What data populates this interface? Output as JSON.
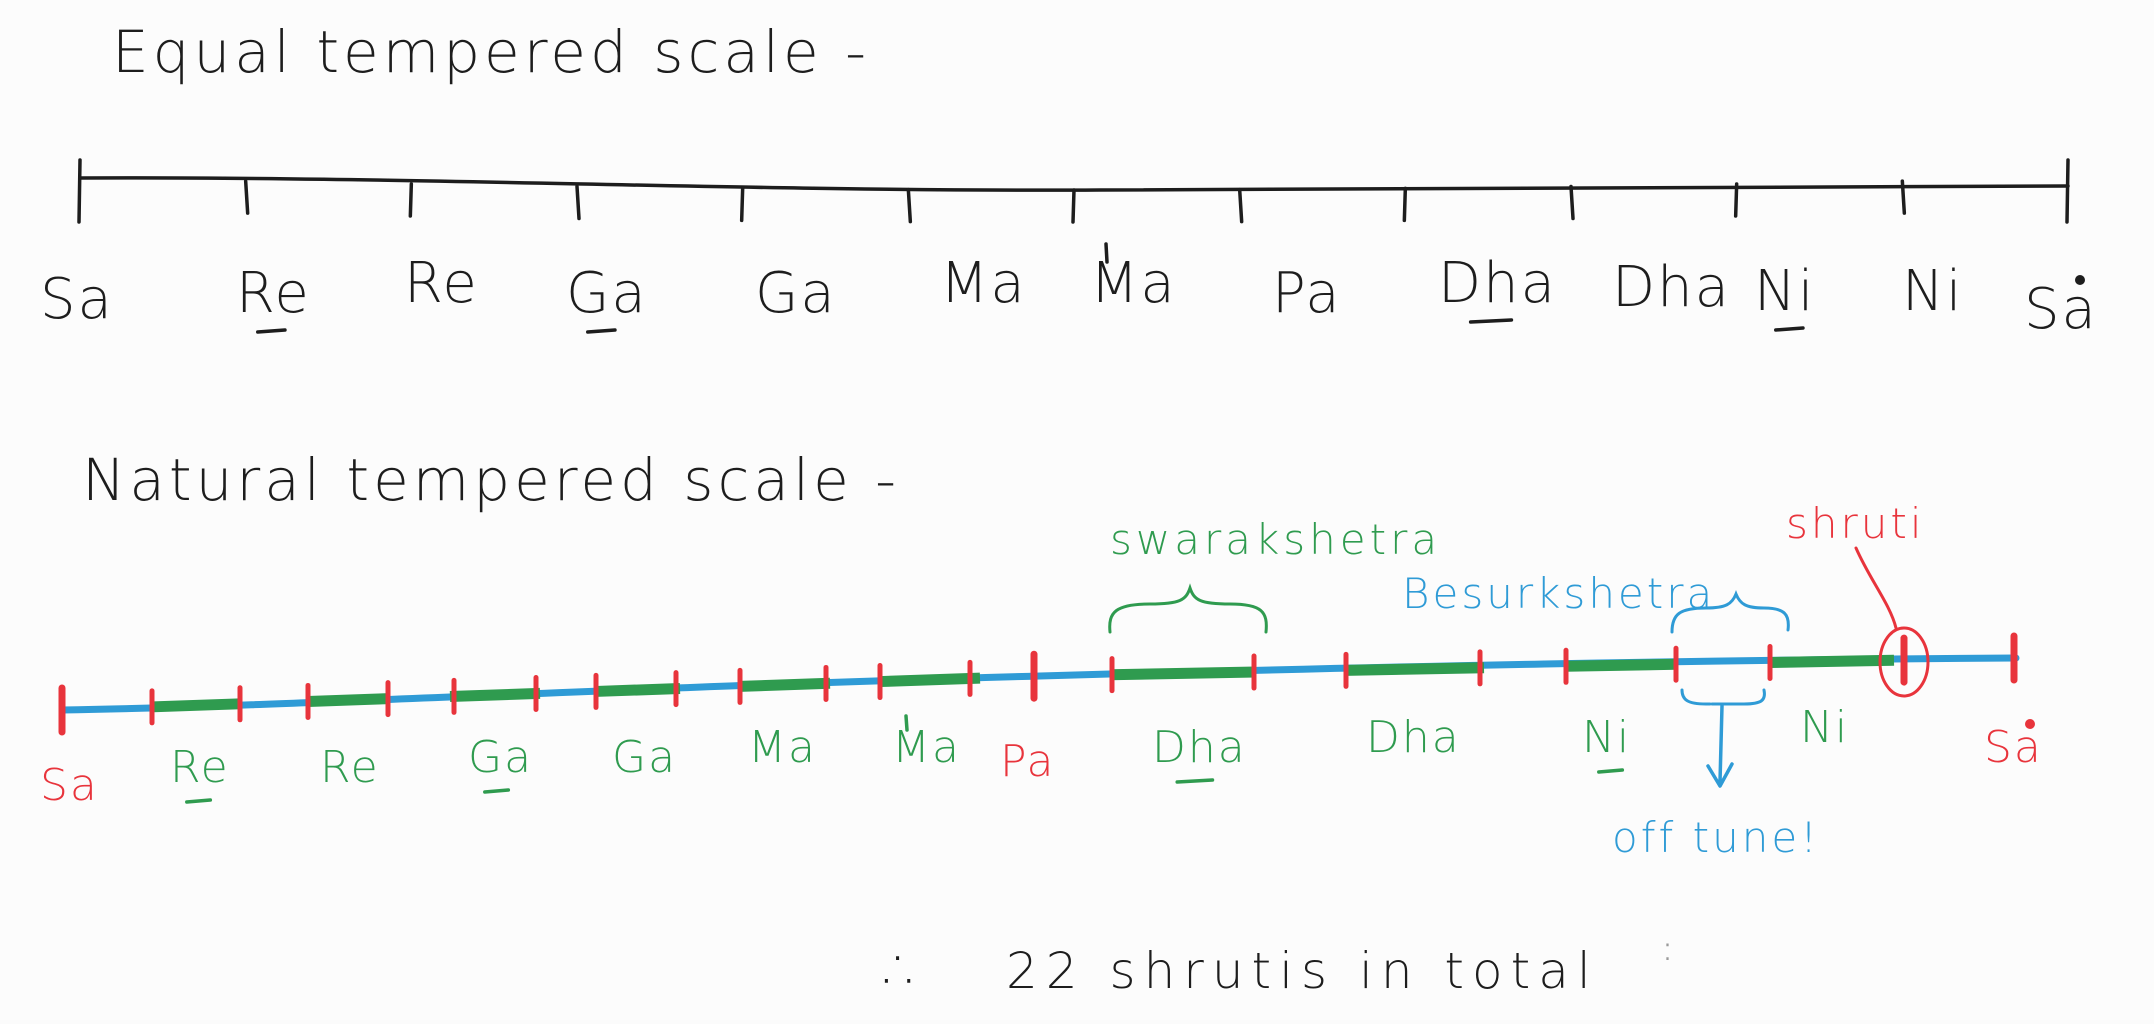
{
  "equal_scale": {
    "heading": "Equal tempered scale -",
    "notes": [
      {
        "label": "Sa",
        "komal": false,
        "tivra": false,
        "taar": false
      },
      {
        "label": "Re",
        "komal": true,
        "tivra": false,
        "taar": false
      },
      {
        "label": "Re",
        "komal": false,
        "tivra": false,
        "taar": false
      },
      {
        "label": "Ga",
        "komal": true,
        "tivra": false,
        "taar": false
      },
      {
        "label": "Ga",
        "komal": false,
        "tivra": false,
        "taar": false
      },
      {
        "label": "Ma",
        "komal": false,
        "tivra": false,
        "taar": false
      },
      {
        "label": "Ma",
        "komal": false,
        "tivra": true,
        "taar": false
      },
      {
        "label": "Pa",
        "komal": false,
        "tivra": false,
        "taar": false
      },
      {
        "label": "Dha",
        "komal": true,
        "tivra": false,
        "taar": false
      },
      {
        "label": "Dha",
        "komal": false,
        "tivra": false,
        "taar": false
      },
      {
        "label": "Ni",
        "komal": true,
        "tivra": false,
        "taar": false
      },
      {
        "label": "Ni",
        "komal": false,
        "tivra": false,
        "taar": false
      },
      {
        "label": "Sa",
        "komal": false,
        "tivra": false,
        "taar": true
      }
    ]
  },
  "natural_scale": {
    "heading": "Natural tempered scale -",
    "notes": [
      {
        "label": "Sa",
        "komal": false,
        "tivra": false,
        "taar": false,
        "color": "red"
      },
      {
        "label": "Re",
        "komal": true,
        "tivra": false,
        "taar": false,
        "color": "green"
      },
      {
        "label": "Re",
        "komal": false,
        "tivra": false,
        "taar": false,
        "color": "green"
      },
      {
        "label": "Ga",
        "komal": true,
        "tivra": false,
        "taar": false,
        "color": "green"
      },
      {
        "label": "Ga",
        "komal": false,
        "tivra": false,
        "taar": false,
        "color": "green"
      },
      {
        "label": "Ma",
        "komal": false,
        "tivra": false,
        "taar": false,
        "color": "green"
      },
      {
        "label": "Ma",
        "komal": false,
        "tivra": true,
        "taar": false,
        "color": "green"
      },
      {
        "label": "Pa",
        "komal": false,
        "tivra": false,
        "taar": false,
        "color": "red"
      },
      {
        "label": "Dha",
        "komal": true,
        "tivra": false,
        "taar": false,
        "color": "green"
      },
      {
        "label": "Dha",
        "komal": false,
        "tivra": false,
        "taar": false,
        "color": "green"
      },
      {
        "label": "Ni",
        "komal": true,
        "tivra": false,
        "taar": false,
        "color": "green"
      },
      {
        "label": "Ni",
        "komal": false,
        "tivra": false,
        "taar": false,
        "color": "green"
      },
      {
        "label": "Sa",
        "komal": false,
        "tivra": false,
        "taar": true,
        "color": "red"
      }
    ],
    "annotations": {
      "swarakshetra": "swarakshetra",
      "besurkshetra": "Besurkshetra",
      "shruti": "shruti",
      "off_tune": "off tune!"
    }
  },
  "conclusion": {
    "therefore_symbol": "∴",
    "text": "22 shrutis in total"
  },
  "colors": {
    "ink": "#1d1d1d",
    "red": "#e8343c",
    "green": "#2f9b4f",
    "blue": "#2f9bd6",
    "background": "#fcfcfc"
  }
}
